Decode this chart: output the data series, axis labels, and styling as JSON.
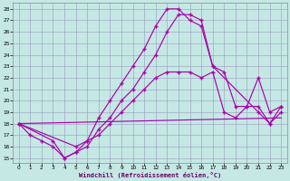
{
  "xlabel": "Windchill (Refroidissement éolien,°C)",
  "bg_color": "#c5e8e5",
  "line_color": "#aa00aa",
  "grid_color": "#9999bb",
  "xlim": [
    -0.5,
    23.5
  ],
  "ylim": [
    14.6,
    28.5
  ],
  "xticks": [
    0,
    1,
    2,
    3,
    4,
    5,
    6,
    7,
    8,
    9,
    10,
    11,
    12,
    13,
    14,
    15,
    16,
    17,
    18,
    19,
    20,
    21,
    22,
    23
  ],
  "yticks": [
    15,
    16,
    17,
    18,
    19,
    20,
    21,
    22,
    23,
    24,
    25,
    26,
    27,
    28
  ],
  "line1_x": [
    0,
    1,
    2,
    3,
    4,
    5,
    6,
    7,
    8,
    9,
    10,
    11,
    12,
    13,
    14,
    15,
    16,
    17,
    21,
    22,
    23
  ],
  "line1_y": [
    18.0,
    17.0,
    16.5,
    16.0,
    15.0,
    15.5,
    16.5,
    18.5,
    20.0,
    21.5,
    23.0,
    24.5,
    26.5,
    28.0,
    28.0,
    27.0,
    26.5,
    23.0,
    19.0,
    18.0,
    19.0
  ],
  "line2_x": [
    0,
    3,
    4,
    5,
    6,
    7,
    8,
    9,
    10,
    11,
    12,
    13,
    14,
    15,
    16,
    17,
    18,
    19,
    20,
    21,
    22,
    23
  ],
  "line2_y": [
    18.0,
    16.5,
    15.0,
    15.5,
    16.0,
    17.5,
    18.5,
    20.0,
    21.0,
    22.5,
    24.0,
    26.0,
    27.5,
    27.5,
    27.0,
    23.0,
    22.5,
    19.5,
    19.5,
    19.5,
    18.0,
    19.5
  ],
  "line3_x": [
    0,
    5,
    6,
    7,
    8,
    9,
    10,
    11,
    12,
    13,
    14,
    15,
    16,
    17,
    18,
    19,
    20,
    21,
    22,
    23
  ],
  "line3_y": [
    18.0,
    16.0,
    16.5,
    17.0,
    18.0,
    19.0,
    20.0,
    21.0,
    22.0,
    22.5,
    22.5,
    22.5,
    22.0,
    22.5,
    19.0,
    18.5,
    19.5,
    22.0,
    19.0,
    19.5
  ],
  "line4_x": [
    0,
    23
  ],
  "line4_y": [
    18.0,
    18.5
  ]
}
